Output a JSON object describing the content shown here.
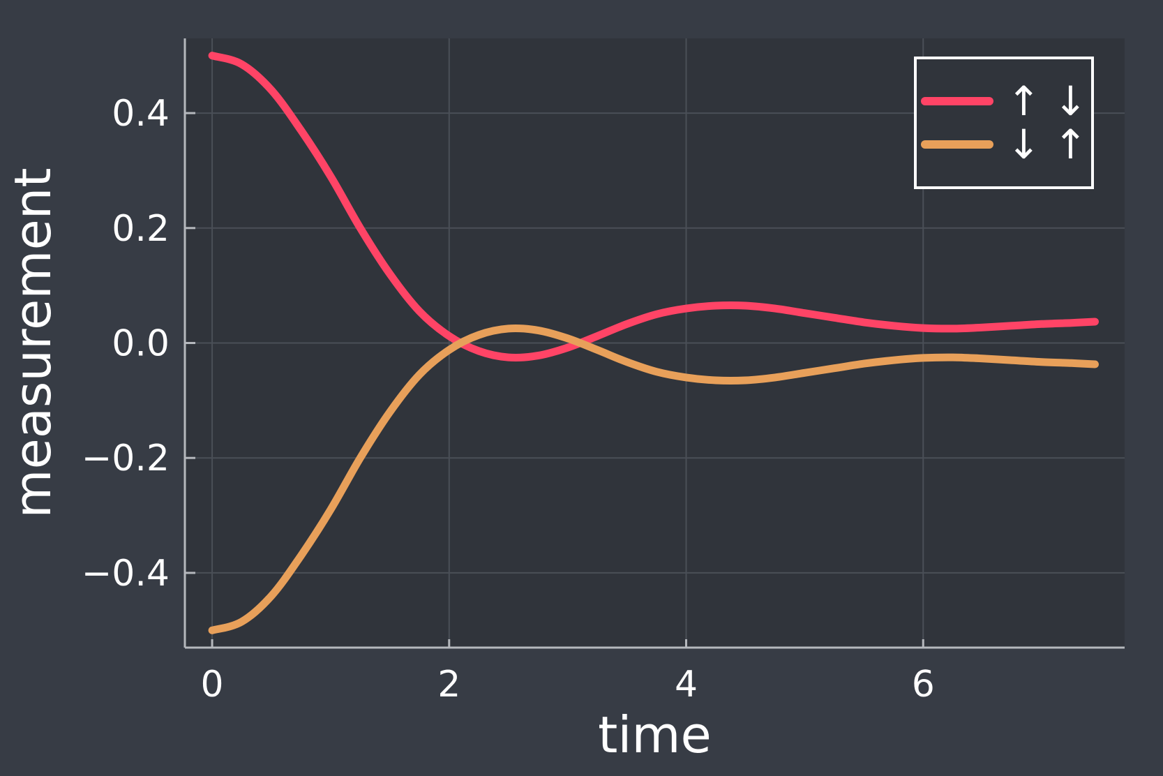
{
  "colors": {
    "background": "#373c45",
    "plot_background": "#30343b",
    "grid": "#4a4f57",
    "axis": "#b5b8bd",
    "text": "#ffffff"
  },
  "chart_data": {
    "type": "line",
    "title": "",
    "xlabel": "time",
    "ylabel": "measurement",
    "xlim": [
      -0.23,
      7.7
    ],
    "ylim": [
      -0.53,
      0.53
    ],
    "xticks": [
      0,
      2,
      4,
      6
    ],
    "xtick_labels": [
      "0",
      "2",
      "4",
      "6"
    ],
    "yticks": [
      -0.4,
      -0.2,
      0.0,
      0.2,
      0.4
    ],
    "ytick_labels": [
      "−0.4",
      "−0.2",
      "0.0",
      "0.2",
      "0.4"
    ],
    "grid": true,
    "legend_position": "top-right",
    "series": [
      {
        "name": "↑ ↓",
        "color": "#ff4466",
        "x": [
          0,
          0.25,
          0.5,
          0.75,
          1.0,
          1.25,
          1.5,
          1.75,
          2.0,
          2.25,
          2.5,
          2.75,
          3.0,
          3.25,
          3.5,
          3.75,
          4.0,
          4.25,
          4.5,
          4.75,
          5.0,
          5.25,
          5.5,
          5.75,
          6.0,
          6.25,
          6.5,
          6.75,
          7.0,
          7.25,
          7.45
        ],
        "y": [
          0.5,
          0.485,
          0.44,
          0.37,
          0.29,
          0.2,
          0.12,
          0.055,
          0.012,
          -0.014,
          -0.025,
          -0.022,
          -0.008,
          0.012,
          0.033,
          0.05,
          0.06,
          0.065,
          0.065,
          0.06,
          0.052,
          0.044,
          0.036,
          0.03,
          0.026,
          0.025,
          0.027,
          0.03,
          0.033,
          0.035,
          0.037
        ]
      },
      {
        "name": "↓ ↑",
        "color": "#e8a05a",
        "x": [
          0,
          0.25,
          0.5,
          0.75,
          1.0,
          1.25,
          1.5,
          1.75,
          2.0,
          2.25,
          2.5,
          2.75,
          3.0,
          3.25,
          3.5,
          3.75,
          4.0,
          4.25,
          4.5,
          4.75,
          5.0,
          5.25,
          5.5,
          5.75,
          6.0,
          6.25,
          6.5,
          6.75,
          7.0,
          7.25,
          7.45
        ],
        "y": [
          -0.5,
          -0.485,
          -0.44,
          -0.37,
          -0.29,
          -0.2,
          -0.12,
          -0.055,
          -0.012,
          0.014,
          0.025,
          0.022,
          0.008,
          -0.012,
          -0.033,
          -0.05,
          -0.06,
          -0.065,
          -0.065,
          -0.06,
          -0.052,
          -0.044,
          -0.036,
          -0.03,
          -0.026,
          -0.025,
          -0.027,
          -0.03,
          -0.033,
          -0.035,
          -0.037
        ]
      }
    ]
  }
}
